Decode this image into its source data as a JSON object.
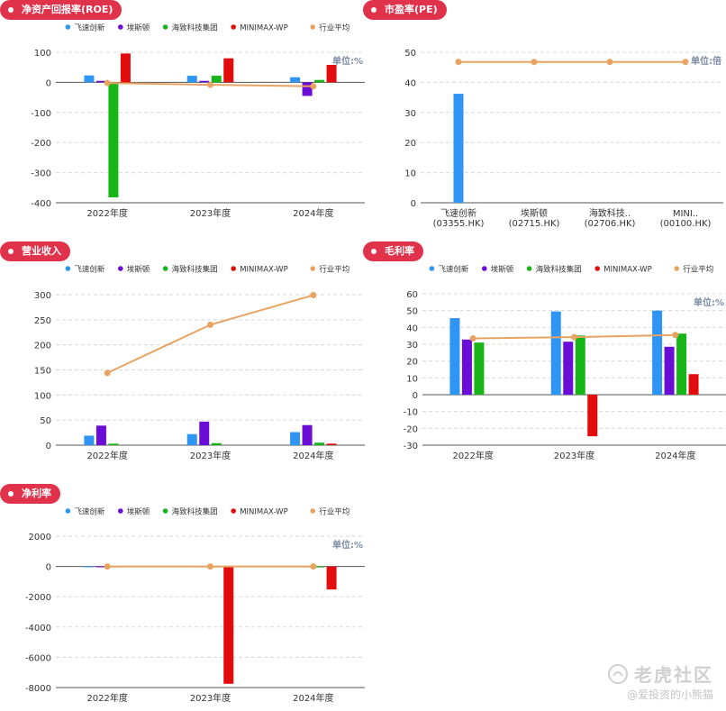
{
  "legend_common": {
    "items": [
      {
        "name": "飞速创新",
        "color": "#2f95f4"
      },
      {
        "name": "埃斯顿",
        "color": "#6a0dd6"
      },
      {
        "name": "海致科技集团",
        "color": "#17b517"
      },
      {
        "name": "MINIMAX-WP",
        "color": "#e30c0c"
      },
      {
        "name": "行业平均",
        "color": "#e8a362"
      }
    ]
  },
  "watermark": {
    "brand": "老虎社区",
    "user": "@爱投资的小熊猫"
  },
  "chart_data": [
    {
      "id": "roe",
      "type": "bar",
      "title": "净资产回报率(ROE)",
      "unit_label": "单位:%",
      "categories": [
        "2022年度",
        "2023年度",
        "2024年度"
      ],
      "ylim": [
        -400,
        100
      ],
      "yticks": [
        100,
        0,
        -100,
        -200,
        -300,
        -400
      ],
      "series": [
        {
          "name": "飞速创新",
          "values": [
            23,
            22,
            17
          ]
        },
        {
          "name": "埃斯顿",
          "values": [
            5,
            5,
            -45
          ]
        },
        {
          "name": "海致科技集团",
          "values": [
            -382,
            22,
            8
          ]
        },
        {
          "name": "MINIMAX-WP",
          "values": [
            96,
            80,
            58
          ]
        }
      ],
      "line": {
        "name": "行业平均",
        "values": [
          -2,
          -8,
          -13
        ]
      }
    },
    {
      "id": "pe",
      "type": "bar",
      "title": "市盈率(PE)",
      "unit_label": "单位:倍",
      "categories": [
        "飞速创新\n(03355.HK)",
        "埃斯顿\n(02715.HK)",
        "海致科技..\n(02706.HK)",
        "MINI..\n(00100.HK)"
      ],
      "ylim": [
        0,
        50
      ],
      "yticks": [
        50,
        40,
        30,
        20,
        10,
        0
      ],
      "values": [
        36.2,
        0,
        0,
        0
      ],
      "line": {
        "name": "行业平均",
        "values": [
          46.8,
          46.8,
          46.8,
          46.8
        ]
      }
    },
    {
      "id": "revenue",
      "type": "bar",
      "title": "营业收入",
      "unit_label": "",
      "categories": [
        "2022年度",
        "2023年度",
        "2024年度"
      ],
      "ylim": [
        0,
        300
      ],
      "yticks": [
        300,
        250,
        200,
        150,
        100,
        50,
        0
      ],
      "series": [
        {
          "name": "飞速创新",
          "values": [
            19,
            22,
            26
          ]
        },
        {
          "name": "埃斯顿",
          "values": [
            39,
            47,
            40
          ]
        },
        {
          "name": "海致科技集团",
          "values": [
            3,
            4,
            5
          ]
        },
        {
          "name": "MINIMAX-WP",
          "values": [
            0,
            0,
            3
          ]
        }
      ],
      "line": {
        "name": "行业平均",
        "values": [
          144,
          240,
          299
        ]
      }
    },
    {
      "id": "gross_margin",
      "type": "bar",
      "title": "毛利率",
      "unit_label": "单位:%",
      "categories": [
        "2022年度",
        "2023年度",
        "2024年度"
      ],
      "ylim": [
        -30,
        60
      ],
      "yticks": [
        60,
        50,
        40,
        30,
        20,
        10,
        0,
        -10,
        -20,
        -30
      ],
      "series": [
        {
          "name": "飞速创新",
          "values": [
            45.5,
            49.5,
            50
          ]
        },
        {
          "name": "埃斯顿",
          "values": [
            32.8,
            31.5,
            28.5
          ]
        },
        {
          "name": "海致科技集团",
          "values": [
            31,
            35.2,
            36.3
          ]
        },
        {
          "name": "MINIMAX-WP",
          "values": [
            0,
            -24.7,
            12.2
          ]
        }
      ],
      "line": {
        "name": "行业平均",
        "values": [
          33.5,
          34.2,
          35.5
        ]
      }
    },
    {
      "id": "net_margin",
      "type": "bar",
      "title": "净利率",
      "unit_label": "单位:%",
      "categories": [
        "2022年度",
        "2023年度",
        "2024年度"
      ],
      "ylim": [
        -8000,
        2000
      ],
      "yticks": [
        2000,
        0,
        -2000,
        -4000,
        -6000,
        -8000
      ],
      "series": [
        {
          "name": "飞速创新",
          "values": [
            8,
            8,
            10
          ]
        },
        {
          "name": "埃斯顿",
          "values": [
            5,
            3,
            2
          ]
        },
        {
          "name": "海致科技集团",
          "values": [
            -20,
            -15,
            -5
          ]
        },
        {
          "name": "MINIMAX-WP",
          "values": [
            0,
            -7750,
            -1520
          ]
        }
      ],
      "line": {
        "name": "行业平均",
        "values": [
          0,
          0,
          0
        ]
      }
    }
  ]
}
